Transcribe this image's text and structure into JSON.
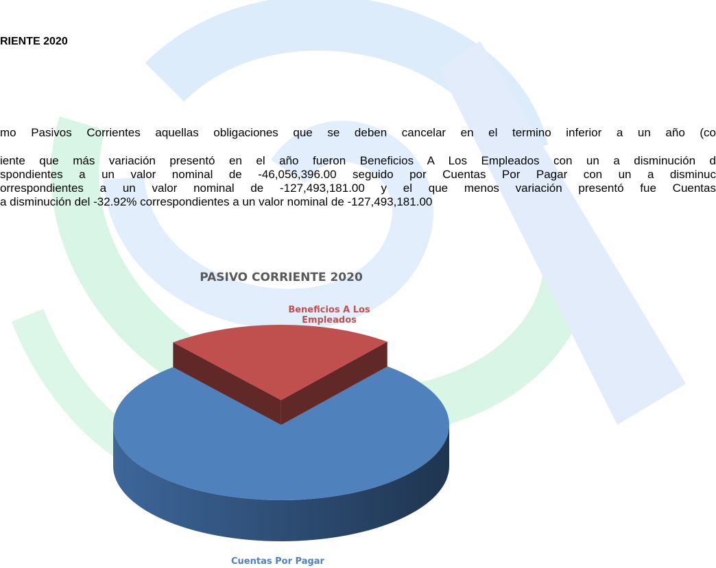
{
  "document": {
    "heading": "RIENTE 2020",
    "paragraph_1": [
      "mo Pasivos Corrientes aquellas obligaciones que se deben cancelar en el termino inferior a un año (co"
    ],
    "paragraph_2": [
      "iente que más variación presentó en el año fueron Beneficios A Los Empleados con un a disminución  d",
      "spondientes a un valor nominal de -46,056,396.00 seguido por Cuentas Por Pagar con un a disminuc",
      "orrespondientes a un valor nominal de -127,493,181.00 y el que menos variación presentó fue Cuentas",
      "a disminución  del -32.92% correspondientes a un valor nominal de -127,493,181.00"
    ]
  },
  "chart_data": {
    "type": "pie",
    "title": "PASIVO CORRIENTE 2020",
    "categories": [
      "Beneficios A Los Empleados",
      "Cuentas Por Pagar"
    ],
    "values": [
      22,
      78
    ],
    "colors": [
      "#c0504d",
      "#4f81bd"
    ]
  }
}
